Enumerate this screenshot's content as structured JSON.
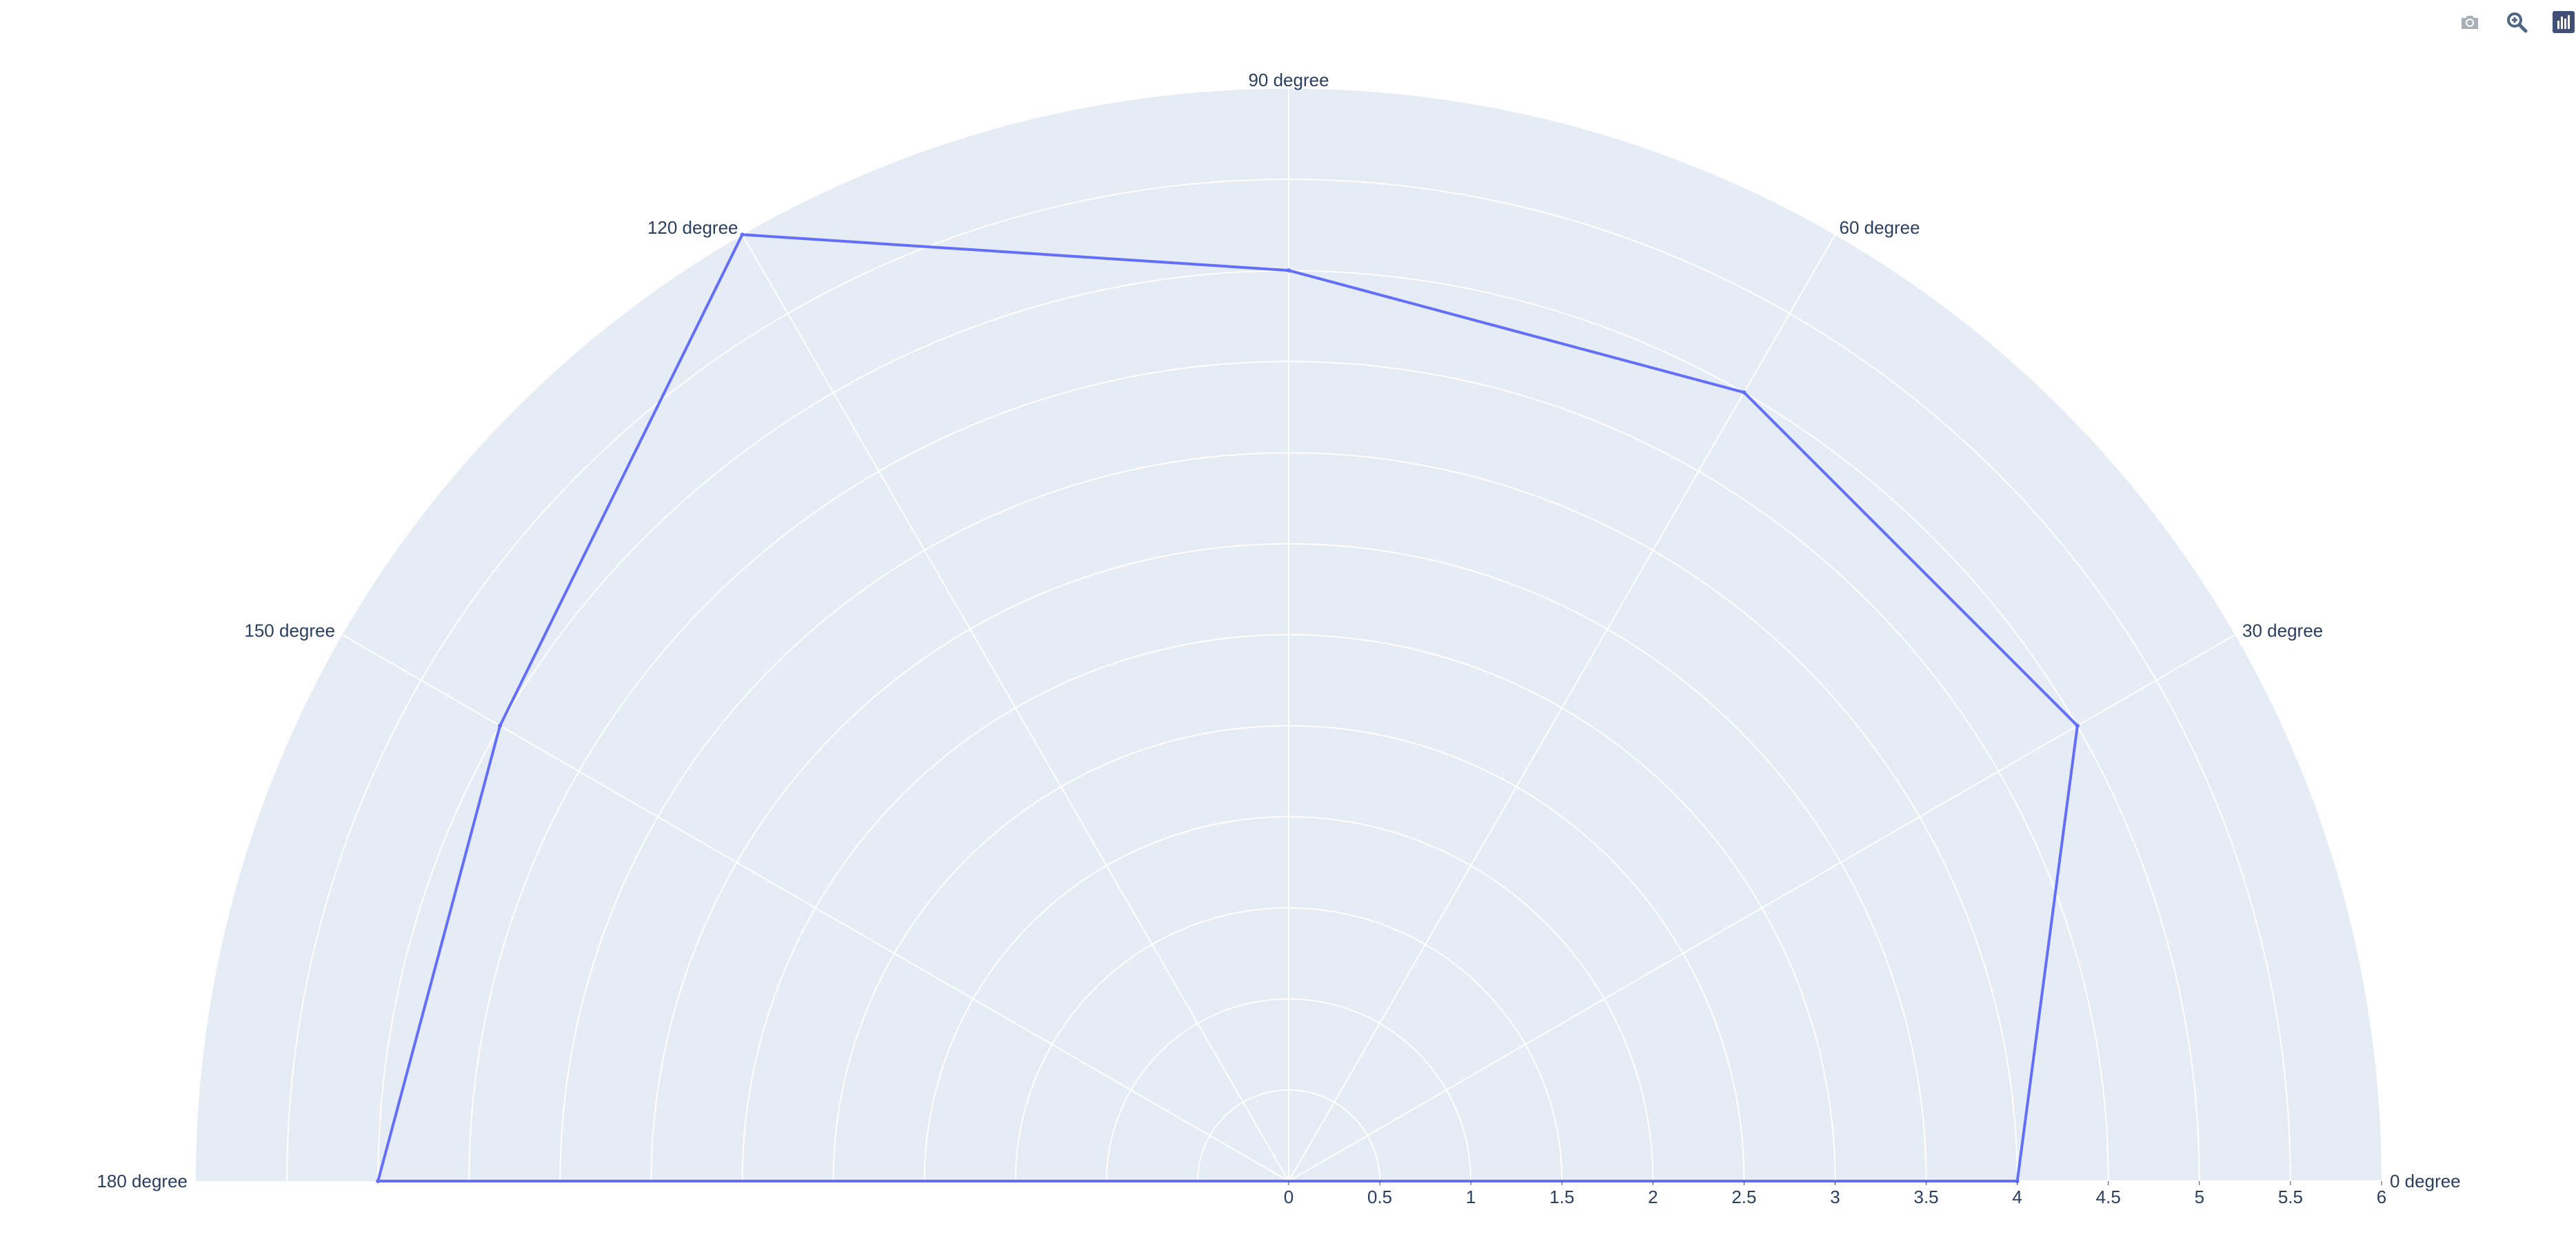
{
  "modebar": {
    "icons": [
      "camera-icon",
      "zoom-icon",
      "plotly-logo-icon"
    ],
    "icon_color": "#a9b0b9",
    "active_color": "#506784"
  },
  "chart_data": {
    "type": "line",
    "subtype": "polar",
    "sector": [
      0,
      180
    ],
    "series": [
      {
        "theta": [
          0,
          30,
          60,
          90,
          120,
          150,
          180
        ],
        "r": [
          4,
          5,
          5,
          5,
          6,
          5,
          5
        ],
        "color": "#636efa"
      }
    ],
    "theta_ticks": [
      "0 degree",
      "30 degree",
      "60 degree",
      "90 degree",
      "120 degree",
      "150 degree",
      "180 degree"
    ],
    "theta_tick_values": [
      0,
      30,
      60,
      90,
      120,
      150,
      180
    ],
    "r_ticks": [
      "0",
      "0.5",
      "1",
      "1.5",
      "2",
      "2.5",
      "3",
      "3.5",
      "4",
      "4.5",
      "5",
      "5.5",
      "6"
    ],
    "r_tick_values": [
      0,
      0.5,
      1,
      1.5,
      2,
      2.5,
      3,
      3.5,
      4,
      4.5,
      5,
      5.5,
      6
    ],
    "r_range": [
      0,
      6
    ],
    "background_color": "#e5ecf6",
    "grid_color": "#ffffff",
    "text_color": "#2a3f5f",
    "grid": true
  }
}
